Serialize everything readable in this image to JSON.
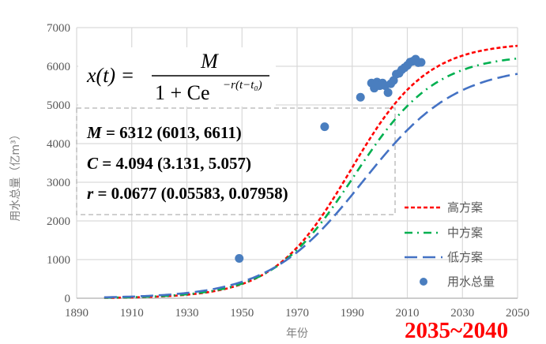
{
  "chart_data": {
    "type": "line",
    "title": "",
    "xlabel": "年份",
    "ylabel": "用水总量（亿m³）",
    "xlim": [
      1890,
      2050
    ],
    "ylim": [
      0,
      7000
    ],
    "x_ticks": [
      "1890",
      "1910",
      "1930",
      "1950",
      "1970",
      "1990",
      "2010",
      "2030",
      "2050"
    ],
    "y_ticks": [
      "0",
      "1000",
      "2000",
      "3000",
      "4000",
      "5000",
      "6000",
      "7000"
    ],
    "grid": true,
    "legend_position": "bottom-right",
    "series": [
      {
        "name": "高方案",
        "kind": "logistic",
        "color": "#ff0000",
        "style": "dotted-dash",
        "M": 6612,
        "C": 4.094,
        "r": 0.072,
        "t0": 1949,
        "x_range": [
          1900,
          2050
        ]
      },
      {
        "name": "中方案",
        "kind": "logistic",
        "color": "#00b050",
        "style": "dash-dot",
        "M": 6312,
        "C": 4.094,
        "r": 0.0677,
        "t0": 1949,
        "x_range": [
          1900,
          2050
        ]
      },
      {
        "name": "低方案",
        "kind": "logistic",
        "color": "#4472c4",
        "style": "long-dash",
        "M": 6013,
        "C": 4.094,
        "r": 0.059,
        "t0": 1949,
        "x_range": [
          1900,
          2050
        ]
      },
      {
        "name": "用水总量",
        "kind": "scatter",
        "color": "#4a7ebf",
        "x": [
          1949,
          1980,
          1993,
          1997,
          1998,
          1999,
          2000,
          2001,
          2002,
          2003,
          2004,
          2005,
          2006,
          2007,
          2008,
          2009,
          2010,
          2011,
          2012,
          2013,
          2014,
          2015
        ],
        "y": [
          1031,
          4437,
          5198,
          5566,
          5435,
          5591,
          5498,
          5567,
          5497,
          5320,
          5548,
          5633,
          5795,
          5819,
          5910,
          5965,
          6022,
          6107,
          6131,
          6183,
          6095,
          6103
        ]
      }
    ],
    "annotations": {
      "formula": {
        "lhs": "x(t) =",
        "numerator": "M",
        "denominator_base": "1 + Ce",
        "exponent": "−r(t−t₀)"
      },
      "params": [
        {
          "symbol": "M",
          "text": " = 6312 (6013, 6611)"
        },
        {
          "symbol": "C",
          "text": " = 4.094 (3.131, 5.057)"
        },
        {
          "symbol": "r",
          "text": " = 0.0677 (0.05583, 0.07958)"
        }
      ],
      "stamp": "2035~2040"
    }
  }
}
